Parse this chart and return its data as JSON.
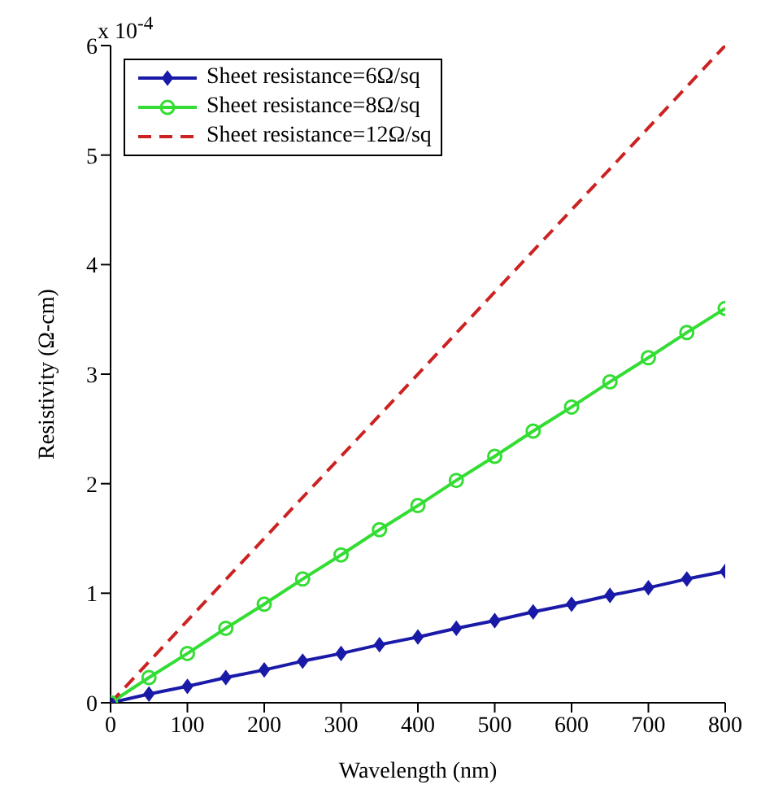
{
  "chart_data": {
    "type": "line",
    "xlabel": "Wavelength (nm)",
    "ylabel": "Resistivity (Ω-cm)",
    "annotations": [
      "x 10$^{-4}$"
    ],
    "x": [
      0,
      50,
      100,
      150,
      200,
      250,
      300,
      350,
      400,
      450,
      500,
      550,
      600,
      650,
      700,
      750,
      800
    ],
    "xlim": [
      0,
      800
    ],
    "xticks": [
      0,
      100,
      200,
      300,
      400,
      500,
      600,
      700,
      800
    ],
    "ylim": [
      0,
      6
    ],
    "yticks": [
      0,
      1,
      2,
      3,
      4,
      5,
      6
    ],
    "grid": false,
    "legend": "top left",
    "series": [
      {
        "name": "Sheet resistance=6Ω/sq",
        "color": "#1a1aa8",
        "marker": "diamond",
        "line_style": "solid",
        "values": [
          0,
          0.08,
          0.15,
          0.23,
          0.3,
          0.38,
          0.45,
          0.53,
          0.6,
          0.68,
          0.75,
          0.83,
          0.9,
          0.98,
          1.05,
          1.13,
          1.2
        ]
      },
      {
        "name": "Sheet resistance=8Ω/sq",
        "color": "#33dd33",
        "marker": "circle",
        "line_style": "solid",
        "values": [
          0,
          0.23,
          0.45,
          0.68,
          0.9,
          1.13,
          1.35,
          1.58,
          1.8,
          2.03,
          2.25,
          2.48,
          2.7,
          2.93,
          3.15,
          3.38,
          3.6
        ]
      },
      {
        "name": "Sheet resistance=12Ω/sq",
        "color": "#cc2222",
        "marker": "none",
        "line_style": "dashed",
        "x": [
          0,
          800
        ],
        "values": [
          0,
          6
        ]
      }
    ]
  }
}
